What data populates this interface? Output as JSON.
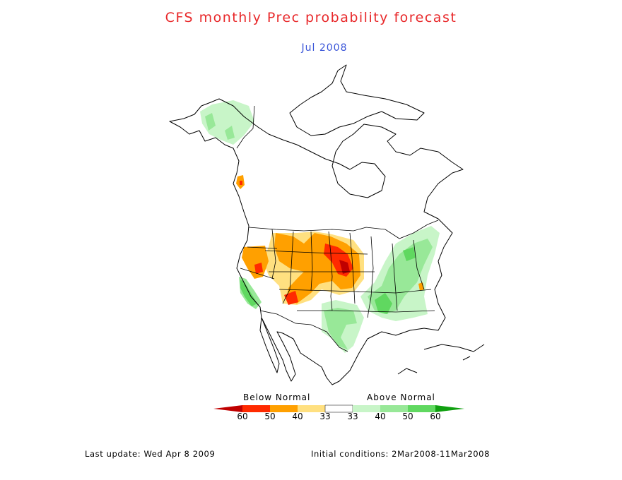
{
  "title": "CFS monthly Prec probability forecast",
  "subtitle": "Jul 2008",
  "legend": {
    "below_label": "Below Normal",
    "above_label": "Above Normal",
    "ticks": [
      "60",
      "50",
      "40",
      "33",
      "33",
      "40",
      "50",
      "60"
    ],
    "colors": {
      "below_60": "#c00000",
      "below_50": "#ff2a00",
      "below_40": "#ffa000",
      "below_33": "#ffe080",
      "normal": "#ffffff",
      "above_33": "#c8f5c8",
      "above_40": "#98e898",
      "above_50": "#60d860",
      "above_60": "#10a010"
    }
  },
  "footer": {
    "last_update": "Last update: Wed Apr 8 2009",
    "initial_conditions": "Initial conditions: 2Mar2008-11Mar2008"
  }
}
